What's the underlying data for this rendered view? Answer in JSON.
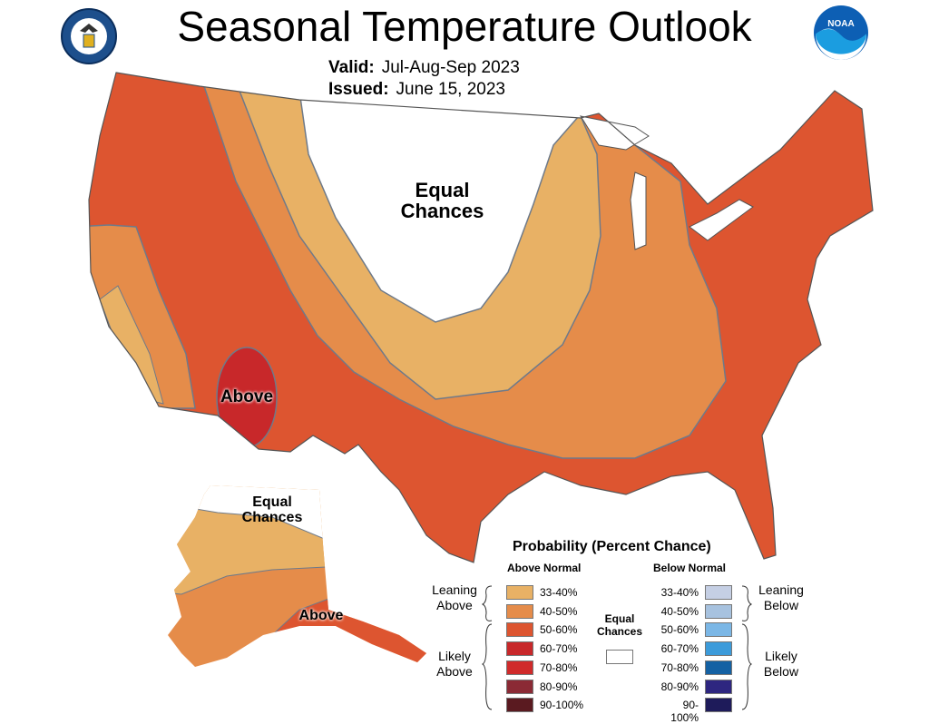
{
  "header": {
    "title": "Seasonal Temperature Outlook",
    "valid_label": "Valid:",
    "valid_value": "Jul-Aug-Sep 2023",
    "issued_label": "Issued:",
    "issued_value": "June 15, 2023"
  },
  "logos": {
    "left": "Department of Commerce seal",
    "right": "NOAA"
  },
  "map_labels": {
    "equal_chances": "Equal Chances",
    "above": "Above",
    "alaska_equal_chances": "Equal Chances",
    "alaska_above": "Above"
  },
  "legend": {
    "title": "Probability (Percent Chance)",
    "above_header": "Above Normal",
    "below_header": "Below Normal",
    "leaning_above": "Leaning Above",
    "likely_above": "Likely Above",
    "leaning_below": "Leaning Below",
    "likely_below": "Likely Below",
    "equal_chances": "Equal Chances",
    "equal_color": "#FFFFFF",
    "above": [
      {
        "range": "33-40%",
        "color": "#E8B165"
      },
      {
        "range": "40-50%",
        "color": "#E58C4A"
      },
      {
        "range": "50-60%",
        "color": "#DD5530"
      },
      {
        "range": "60-70%",
        "color": "#C8282A"
      },
      {
        "range": "70-80%",
        "color": "#D02B2B"
      },
      {
        "range": "80-90%",
        "color": "#8B2A35"
      },
      {
        "range": "90-100%",
        "color": "#5A1A20"
      }
    ],
    "below": [
      {
        "range": "33-40%",
        "color": "#C5CFE4"
      },
      {
        "range": "40-50%",
        "color": "#A7C2DF"
      },
      {
        "range": "50-60%",
        "color": "#7BB7E6"
      },
      {
        "range": "60-70%",
        "color": "#3C9BDA"
      },
      {
        "range": "70-80%",
        "color": "#1461A3"
      },
      {
        "range": "80-90%",
        "color": "#2E2680"
      },
      {
        "range": "90-100%",
        "color": "#1E1B5A"
      }
    ]
  }
}
